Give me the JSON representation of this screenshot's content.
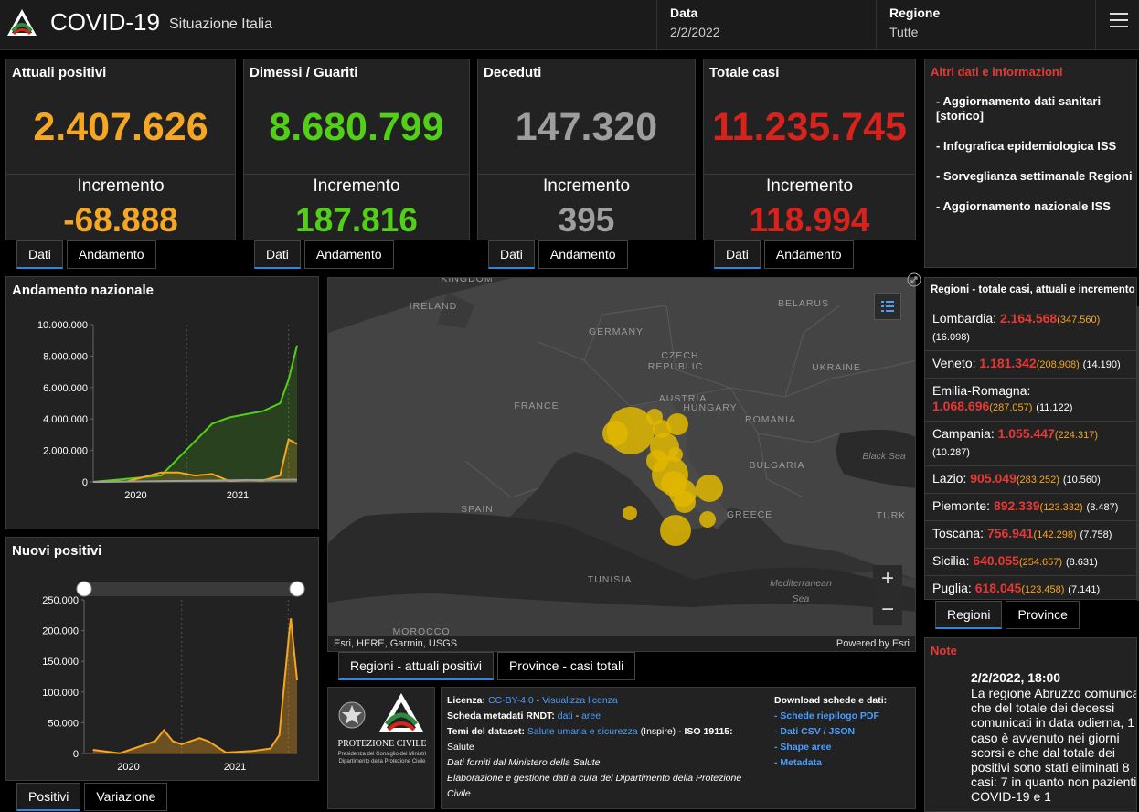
{
  "header": {
    "title": "COVID-19",
    "subtitle": "Situazione Italia",
    "data_label": "Data",
    "data_value": "2/2/2022",
    "regione_label": "Regione",
    "regione_value": "Tutte"
  },
  "stats": [
    {
      "title": "Attuali positivi",
      "value": "2.407.626",
      "inc_label": "Incremento",
      "inc_value": "-68.888",
      "color": "#f5a623"
    },
    {
      "title": "Dimessi / Guariti",
      "value": "8.680.799",
      "inc_label": "Incremento",
      "inc_value": "187.816",
      "color": "#52d017"
    },
    {
      "title": "Deceduti",
      "value": "147.320",
      "inc_label": "Incremento",
      "inc_value": "395",
      "color": "#9e9e9e"
    },
    {
      "title": "Totale casi",
      "value": "11.235.745",
      "inc_label": "Incremento",
      "inc_value": "118.994",
      "color": "#d9221c"
    }
  ],
  "stat_tabs": {
    "dati": "Dati",
    "andamento": "Andamento"
  },
  "info": {
    "title": "Altri dati e informazioni",
    "links": [
      "- Aggiornamento dati sanitari [storico]",
      "- Infografica epidemiologica ISS",
      "- Sorveglianza settimanale Regioni",
      "- Aggiornamento nazionale ISS"
    ]
  },
  "regions": {
    "title": "Regioni - totale casi, attuali e incremento",
    "items": [
      {
        "name": "Lombardia:",
        "total": "2.164.568",
        "attuali": "(347.560)",
        "inc": "(16.098)"
      },
      {
        "name": "Veneto:",
        "total": "1.181.342",
        "attuali": "(208.908)",
        "inc": "(14.190)"
      },
      {
        "name": "Emilia-Romagna:",
        "total": "1.068.696",
        "attuali": "(287.057)",
        "inc": "(11.122)"
      },
      {
        "name": "Campania:",
        "total": "1.055.447",
        "attuali": "(224.317)",
        "inc": "(10.287)"
      },
      {
        "name": "Lazio:",
        "total": "905.049",
        "attuali": "(283.252)",
        "inc": "(10.560)"
      },
      {
        "name": "Piemonte:",
        "total": "892.339",
        "attuali": "(123.332)",
        "inc": "(8.487)"
      },
      {
        "name": "Toscana:",
        "total": "756.941",
        "attuali": "(142.298)",
        "inc": "(7.758)"
      },
      {
        "name": "Sicilia:",
        "total": "640.055",
        "attuali": "(254.657)",
        "inc": "(8.631)"
      },
      {
        "name": "Puglia:",
        "total": "618.045",
        "attuali": "(123.458)",
        "inc": "(7.141)"
      }
    ],
    "tab_regioni": "Regioni",
    "tab_province": "Province"
  },
  "andamento": {
    "title": "Andamento nazionale"
  },
  "nuovi": {
    "title": "Nuovi positivi",
    "tab_positivi": "Positivi",
    "tab_variazione": "Variazione"
  },
  "chart_data": [
    {
      "type": "line",
      "title": "Andamento nazionale",
      "x_ticks": [
        "2020",
        "2021"
      ],
      "y_ticks": [
        "10.000.000",
        "8.000.000",
        "6.000.000",
        "4.000.000",
        "2.000.000",
        "0"
      ],
      "ylim": [
        0,
        10000000
      ],
      "series": [
        {
          "color": "#52d017",
          "x": [
            "2020-02",
            "2020-06",
            "2020-10",
            "2020-12",
            "2021-02",
            "2021-04",
            "2021-06",
            "2021-08",
            "2021-10",
            "2021-12",
            "2022-01",
            "2022-02"
          ],
          "values": [
            0,
            200000,
            400000,
            1500000,
            2600000,
            3700000,
            4100000,
            4300000,
            4500000,
            5000000,
            6500000,
            8680799
          ]
        },
        {
          "color": "#f5a623",
          "x": [
            "2020-02",
            "2020-06",
            "2020-10",
            "2020-12",
            "2021-02",
            "2021-04",
            "2021-06",
            "2021-08",
            "2021-10",
            "2021-12",
            "2022-01",
            "2022-02"
          ],
          "values": [
            0,
            30000,
            600000,
            600000,
            400000,
            500000,
            60000,
            120000,
            90000,
            400000,
            2700000,
            2407626
          ]
        },
        {
          "color": "#9e9e9e",
          "x": [
            "2020-02",
            "2022-02"
          ],
          "values": [
            0,
            147320
          ]
        }
      ]
    },
    {
      "type": "area",
      "title": "Nuovi positivi",
      "x_ticks": [
        "2020",
        "2021"
      ],
      "y_ticks": [
        "250.000",
        "200.000",
        "150.000",
        "100.000",
        "50.000",
        "0"
      ],
      "ylim": [
        0,
        250000
      ],
      "series": [
        {
          "color": "#f5a623",
          "x": [
            "2020-03",
            "2020-06",
            "2020-10",
            "2020-11",
            "2020-12",
            "2021-01",
            "2021-03",
            "2021-04",
            "2021-06",
            "2021-09",
            "2021-11",
            "2021-12",
            "2022-01-05",
            "2022-01-10",
            "2022-01-18",
            "2022-02-01"
          ],
          "values": [
            6000,
            300,
            20000,
            38000,
            20000,
            15000,
            25000,
            20000,
            1500,
            4000,
            8000,
            30000,
            200000,
            220000,
            180000,
            118994
          ]
        }
      ]
    }
  ],
  "map": {
    "countries": [
      "IRELAND",
      "KINGDOM",
      "GERMANY",
      "CZECH",
      "REPUBLIC",
      "BELARUS",
      "UKRAINE",
      "FRANCE",
      "AUSTRIA",
      "HUNGARY",
      "ROMANIA",
      "BULGARIA",
      "SPAIN",
      "GREECE",
      "TURK",
      "TUNISIA",
      "MOROCCO"
    ],
    "seas": [
      "Black Sea",
      "Mediterranean",
      "Sea"
    ],
    "attribution": "Esri, HERE, Garmin, USGS",
    "powered": "Powered by Esri",
    "tab_regioni": "Regioni - attuali positivi",
    "tab_province": "Province - casi totali",
    "bubble_color": "#e1b700"
  },
  "license": {
    "lic_label": "Licenza:",
    "lic_link1": "CC-BY-4.0",
    "lic_sep": " - ",
    "lic_link2": "Visualizza licenza",
    "rndt_label": "Scheda metadati RNDT:",
    "rndt_link1": "dati",
    "rndt_link2": "aree",
    "temi_label": "Temi del dataset:",
    "temi_link": "Salute umana e sicurezza",
    "temi_rest": " (Inspire) - ",
    "iso": "ISO 19115:",
    "salute": "Salute",
    "fonte": "Dati forniti dal Ministero della Salute",
    "elab": "Elaborazione e gestione dati a cura del Dipartimento della Protezione Civile",
    "pc_name": "PROTEZIONE CIVILE",
    "pc_sub1": "Presidenza del Consiglio dei Ministri",
    "pc_sub2": "Dipartimento della Protezione Civile"
  },
  "download": {
    "title": "Download schede e dati:",
    "links": [
      "- Schede riepilogo PDF",
      "- Dati CSV / JSON",
      "- Shape aree",
      "- Metadata"
    ]
  },
  "note": {
    "title": "Note",
    "date": "2/2/2022, 18:00",
    "body": "La regione Abruzzo comunica che del totale dei decessi comunicati in data odierna, 1 caso è avvenuto nei giorni scorsi e che dal totale dei positivi sono stati eliminati 8 casi: 7 in quanto non pazienti COVID-19 e 1"
  }
}
